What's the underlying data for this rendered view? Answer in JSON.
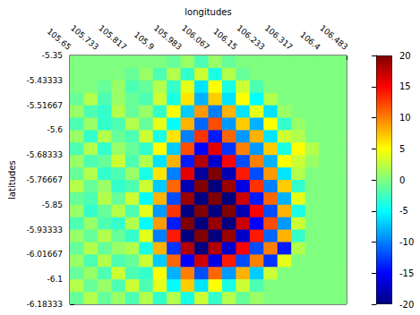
{
  "chart_data": {
    "type": "heatmap",
    "x_label": "longitudes",
    "y_label": "latitudes",
    "xlim": [
      105.65,
      106.483
    ],
    "xticks": [
      105.65,
      105.733,
      105.817,
      105.9,
      105.983,
      106.067,
      106.15,
      106.233,
      106.317,
      106.4,
      106.483
    ],
    "ylim": [
      -6.18333,
      -5.35
    ],
    "yticks": [
      -5.35,
      -5.43333,
      -5.51667,
      -5.6,
      -5.68333,
      -5.76667,
      -5.85,
      -5.93333,
      -6.01667,
      -6.1,
      -6.18333
    ],
    "colorbar": {
      "range": [
        -20,
        20
      ],
      "ticks": [
        -20,
        -15,
        -10,
        -5,
        0,
        5,
        10,
        15,
        20
      ]
    },
    "cells": [
      [
        0,
        0,
        0,
        0,
        0,
        0,
        0,
        -1,
        1,
        -2,
        1,
        -1,
        0,
        0,
        0,
        0,
        0,
        0,
        0,
        0
      ],
      [
        0,
        0,
        0,
        0,
        -1,
        1,
        -2,
        2,
        -3,
        3,
        -4,
        2,
        -1,
        0,
        0,
        0,
        0,
        0,
        0,
        0
      ],
      [
        0,
        0,
        -1,
        1,
        -2,
        -1,
        2,
        -3,
        4,
        -6,
        5,
        -4,
        3,
        -2,
        0,
        0,
        0,
        0,
        0,
        0
      ],
      [
        -1,
        2,
        -2,
        1,
        -1,
        -2,
        3,
        -4,
        6,
        -8,
        7,
        -6,
        5,
        -5,
        2,
        0,
        0,
        0,
        0,
        0
      ],
      [
        1,
        -2,
        -3,
        2,
        -1,
        1,
        -3,
        5,
        -7,
        9,
        -10,
        8,
        -6,
        4,
        -6,
        1,
        0,
        0,
        0,
        0
      ],
      [
        -2,
        1,
        -3,
        -2,
        2,
        -1,
        4,
        -5,
        8,
        -11,
        12,
        -9,
        7,
        -8,
        5,
        -3,
        1,
        0,
        0,
        0
      ],
      [
        1,
        -3,
        2,
        -1,
        -2,
        3,
        -4,
        6,
        -10,
        13,
        -14,
        11,
        -9,
        8,
        -6,
        3,
        2,
        0,
        0,
        0
      ],
      [
        -2,
        2,
        -3,
        1,
        -1,
        -3,
        5,
        -7,
        12,
        -15,
        16,
        -13,
        10,
        -9,
        7,
        -4,
        5,
        2,
        0,
        0
      ],
      [
        1,
        -2,
        -1,
        3,
        -2,
        2,
        -6,
        8,
        -14,
        18,
        -17,
        15,
        -12,
        10,
        -8,
        5,
        3,
        1,
        0,
        0
      ],
      [
        -1,
        2,
        -3,
        -2,
        1,
        -4,
        6,
        -10,
        16,
        -19,
        20,
        -18,
        14,
        -12,
        9,
        -6,
        2,
        0,
        0,
        0
      ],
      [
        2,
        -1,
        1,
        -3,
        -2,
        3,
        -7,
        11,
        -18,
        20,
        -20,
        19,
        -16,
        13,
        -10,
        7,
        -3,
        0,
        0,
        0
      ],
      [
        -1,
        -2,
        2,
        -1,
        3,
        -5,
        8,
        -12,
        19,
        -20,
        20,
        -20,
        17,
        -14,
        11,
        -8,
        4,
        0,
        0,
        0
      ],
      [
        1,
        -3,
        -1,
        2,
        -2,
        4,
        -9,
        13,
        -20,
        20,
        -20,
        20,
        -18,
        15,
        -12,
        8,
        -4,
        0,
        0,
        0
      ],
      [
        -2,
        1,
        -2,
        -3,
        2,
        -5,
        9,
        -14,
        20,
        -20,
        19,
        -20,
        17,
        -15,
        12,
        -9,
        3,
        0,
        0,
        0
      ],
      [
        1,
        -1,
        2,
        -1,
        -3,
        4,
        -10,
        14,
        -20,
        20,
        -20,
        19,
        -17,
        14,
        -11,
        8,
        -3,
        0,
        0,
        0
      ],
      [
        -1,
        2,
        -1,
        1,
        2,
        -4,
        8,
        -13,
        18,
        -20,
        18,
        -17,
        15,
        -12,
        10,
        -14,
        2,
        0,
        0,
        0
      ],
      [
        1,
        -2,
        2,
        -2,
        -1,
        3,
        -7,
        11,
        -15,
        17,
        -16,
        14,
        -12,
        10,
        -13,
        4,
        0,
        0,
        0,
        0
      ],
      [
        -1,
        1,
        -2,
        3,
        -2,
        -3,
        5,
        -8,
        10,
        -12,
        11,
        -9,
        8,
        -7,
        3,
        0,
        0,
        0,
        0,
        0
      ],
      [
        2,
        -1,
        1,
        -2,
        3,
        -2,
        4,
        -5,
        7,
        -6,
        5,
        -4,
        3,
        -2,
        0,
        0,
        0,
        0,
        0,
        0
      ],
      [
        -1,
        2,
        -1,
        1,
        -2,
        2,
        -3,
        2,
        -4,
        3,
        -3,
        2,
        -1,
        1,
        0,
        0,
        0,
        0,
        0,
        0
      ]
    ]
  }
}
